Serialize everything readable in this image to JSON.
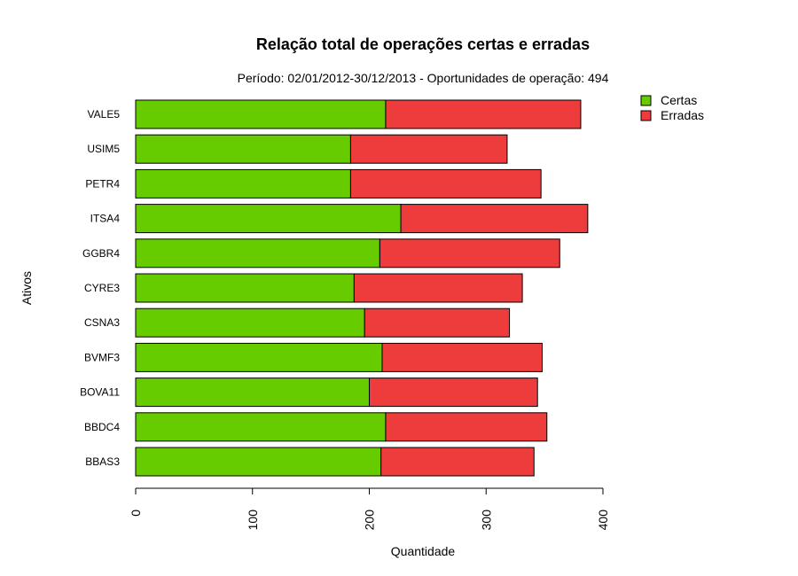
{
  "chart_data": {
    "type": "bar",
    "orientation": "horizontal",
    "stacked": true,
    "title": "Relação total de operações certas e erradas",
    "subtitle": "Período: 02/01/2012-30/12/2013 - Oportunidades de operação: 494",
    "xlabel": "Quantidade",
    "ylabel": "Ativos",
    "xlim": [
      0,
      400
    ],
    "x_ticks": [
      "0",
      "100",
      "200",
      "300",
      "400"
    ],
    "categories": [
      "BBAS3",
      "BBDC4",
      "BOVA11",
      "BVMF3",
      "CSNA3",
      "CYRE3",
      "GGBR4",
      "ITSA4",
      "PETR4",
      "USIM5",
      "VALE5"
    ],
    "series": [
      {
        "name": "Certas",
        "color": "#66cc00",
        "values": [
          210,
          214,
          200,
          211,
          196,
          187,
          209,
          227,
          184,
          184,
          214
        ]
      },
      {
        "name": "Erradas",
        "color": "#ee3b3b",
        "values": [
          131,
          138,
          144,
          137,
          124,
          144,
          154,
          160,
          163,
          134,
          167
        ]
      }
    ],
    "legend": {
      "position": "top-right",
      "entries": [
        "Certas",
        "Erradas"
      ]
    },
    "grid": false
  }
}
